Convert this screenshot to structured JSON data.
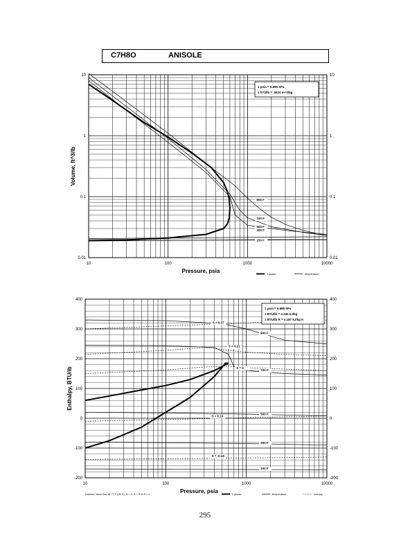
{
  "header": {
    "formula": "C7H8O",
    "name": "ANISOLE"
  },
  "page_number": "295",
  "chart_data": [
    {
      "type": "line",
      "xlabel": "Pressure,  psia",
      "ylabel": "Volume,  ft^3/lb",
      "xscale": "log",
      "yscale": "log",
      "xlim": [
        10,
        10000
      ],
      "ylim": [
        0.01,
        10
      ],
      "x_ticks": [
        "10",
        "100",
        "1000",
        "10000"
      ],
      "y_ticks": [
        "0.01",
        "0.1",
        "1",
        "10"
      ],
      "y_ticks_right": [
        "0.01",
        "0.1",
        "1",
        "10"
      ],
      "legend": [
        "2 phase",
        "temperature"
      ],
      "notes": [
        "1 psia  =  6.895 kPa",
        "1 ft^3/lb  =  .0624 m^3/kg"
      ],
      "isotherm_labels": [
        "900 F",
        "700 F",
        "500 F",
        "300 F",
        "150 F"
      ],
      "series": [
        {
          "name": "2 phase",
          "style": "thick",
          "x": [
            10,
            20,
            50,
            100,
            200,
            350,
            500,
            560,
            590,
            600,
            590,
            560,
            500,
            300,
            100,
            30,
            10
          ],
          "y": [
            7.0,
            3.8,
            1.65,
            0.95,
            0.52,
            0.3,
            0.17,
            0.12,
            0.09,
            0.065,
            0.045,
            0.036,
            0.03,
            0.024,
            0.021,
            0.0195,
            0.019
          ]
        },
        {
          "name": "900 F",
          "style": "thin",
          "x": [
            10,
            30,
            100,
            300,
            700,
            1000,
            1500,
            2000,
            3000,
            5000,
            10000
          ],
          "y": [
            10.5,
            3.6,
            1.1,
            0.35,
            0.15,
            0.095,
            0.06,
            0.046,
            0.035,
            0.028,
            0.023
          ]
        },
        {
          "name": "700 F",
          "style": "thin",
          "x": [
            10,
            30,
            100,
            300,
            600,
            800,
            1000,
            2000,
            5000,
            10000
          ],
          "y": [
            9.0,
            3.0,
            0.9,
            0.28,
            0.11,
            0.06,
            0.045,
            0.032,
            0.026,
            0.023
          ]
        },
        {
          "name": "500 F",
          "style": "thin",
          "x": [
            10,
            30,
            100,
            300,
            600,
            700,
            1000,
            3000,
            10000
          ],
          "y": [
            8.0,
            2.6,
            0.78,
            0.25,
            0.1,
            0.05,
            0.034,
            0.028,
            0.024
          ]
        },
        {
          "name": "300 F",
          "style": "thin",
          "x": [
            10,
            100,
            1000,
            10000
          ],
          "y": [
            0.0205,
            0.021,
            0.0215,
            0.022
          ]
        },
        {
          "name": "150 F",
          "style": "thin",
          "x": [
            10,
            100,
            1000,
            10000
          ],
          "y": [
            0.0188,
            0.019,
            0.0193,
            0.0196
          ]
        }
      ]
    },
    {
      "type": "line",
      "xlabel": "Pressure,  psia",
      "ylabel": "Enthalpy,  BTU/lb",
      "xscale": "log",
      "yscale": "linear",
      "xlim": [
        10,
        10000
      ],
      "ylim": [
        -200,
        400
      ],
      "x_ticks": [
        "10",
        "100",
        "1000",
        "10000"
      ],
      "y_ticks": [
        "-200",
        "-100",
        "0",
        "100",
        "200",
        "300",
        "400"
      ],
      "y_ticks_right": [
        "-200",
        "-100",
        "0",
        "100",
        "200",
        "300",
        "400"
      ],
      "legend": [
        "2 phase",
        "temperature",
        "entropy"
      ],
      "footnote": "Datums: Ideal Gas @ 77 F (25 C),  H = 0,  S = R ln P = 0",
      "notes": [
        "1 psia  =  6.895 kPa",
        "1 BTU/lb  =  2.326 kJ/kg",
        "1 BTU/lb R  =  4.187 kJ/kg K"
      ],
      "isotherm_labels": [
        "900 F",
        "700 F",
        "500 F",
        "300 F",
        "100 F"
      ],
      "entropy_labels": [
        "S = 0.37",
        "S = 0.21",
        "S = 0",
        "S = 0.16",
        "S = -0.16"
      ],
      "series": [
        {
          "name": "2 phase",
          "style": "thick",
          "x": [
            10,
            20,
            50,
            100,
            200,
            400,
            550,
            600,
            550,
            400,
            200,
            100,
            50,
            20,
            10
          ],
          "y": [
            60,
            75,
            95,
            110,
            130,
            160,
            180,
            185,
            185,
            140,
            70,
            20,
            -30,
            -75,
            -100
          ]
        },
        {
          "name": "900 F",
          "style": "thin",
          "x": [
            10,
            100,
            500,
            1000,
            3000,
            10000
          ],
          "y": [
            330,
            328,
            318,
            300,
            262,
            250
          ]
        },
        {
          "name": "700 F",
          "style": "thin",
          "x": [
            10,
            100,
            400,
            600,
            700,
            1000,
            3000,
            10000
          ],
          "y": [
            245,
            244,
            238,
            215,
            175,
            160,
            150,
            145
          ]
        },
        {
          "name": "500 F",
          "style": "thin",
          "x": [
            10,
            100,
            1000,
            10000
          ],
          "y": [
            20,
            18,
            14,
            8
          ]
        },
        {
          "name": "300 F",
          "style": "thin",
          "x": [
            10,
            100,
            1000,
            10000
          ],
          "y": [
            -80,
            -82,
            -85,
            -90
          ]
        },
        {
          "name": "100 F",
          "style": "thin",
          "x": [
            10,
            100,
            1000,
            10000
          ],
          "y": [
            -170,
            -171,
            -172,
            -173
          ]
        },
        {
          "name": "S = 0.37",
          "style": "dashed",
          "x": [
            10,
            100,
            300,
            1000,
            3000,
            10000
          ],
          "y": [
            300,
            310,
            315,
            320,
            327,
            330
          ]
        },
        {
          "name": "S = 0.21",
          "style": "dashed",
          "x": [
            10,
            100,
            300,
            700,
            1000,
            3000,
            10000
          ],
          "y": [
            215,
            228,
            238,
            226,
            222,
            215,
            210
          ]
        },
        {
          "name": "S = 0",
          "style": "dashed",
          "x": [
            10,
            100,
            300,
            600,
            1000,
            3000,
            10000
          ],
          "y": [
            150,
            162,
            172,
            175,
            170,
            165,
            160
          ]
        },
        {
          "name": "S = 0.16",
          "style": "dashed",
          "x": [
            10,
            100,
            600,
            1000,
            3000,
            10000
          ],
          "y": [
            -10,
            -4,
            0,
            2,
            5,
            8
          ]
        },
        {
          "name": "S = -0.16",
          "style": "dashed",
          "x": [
            10,
            100,
            600,
            1000,
            3000,
            10000
          ],
          "y": [
            -138,
            -136,
            -134,
            -133,
            -132,
            -130
          ]
        }
      ]
    }
  ]
}
